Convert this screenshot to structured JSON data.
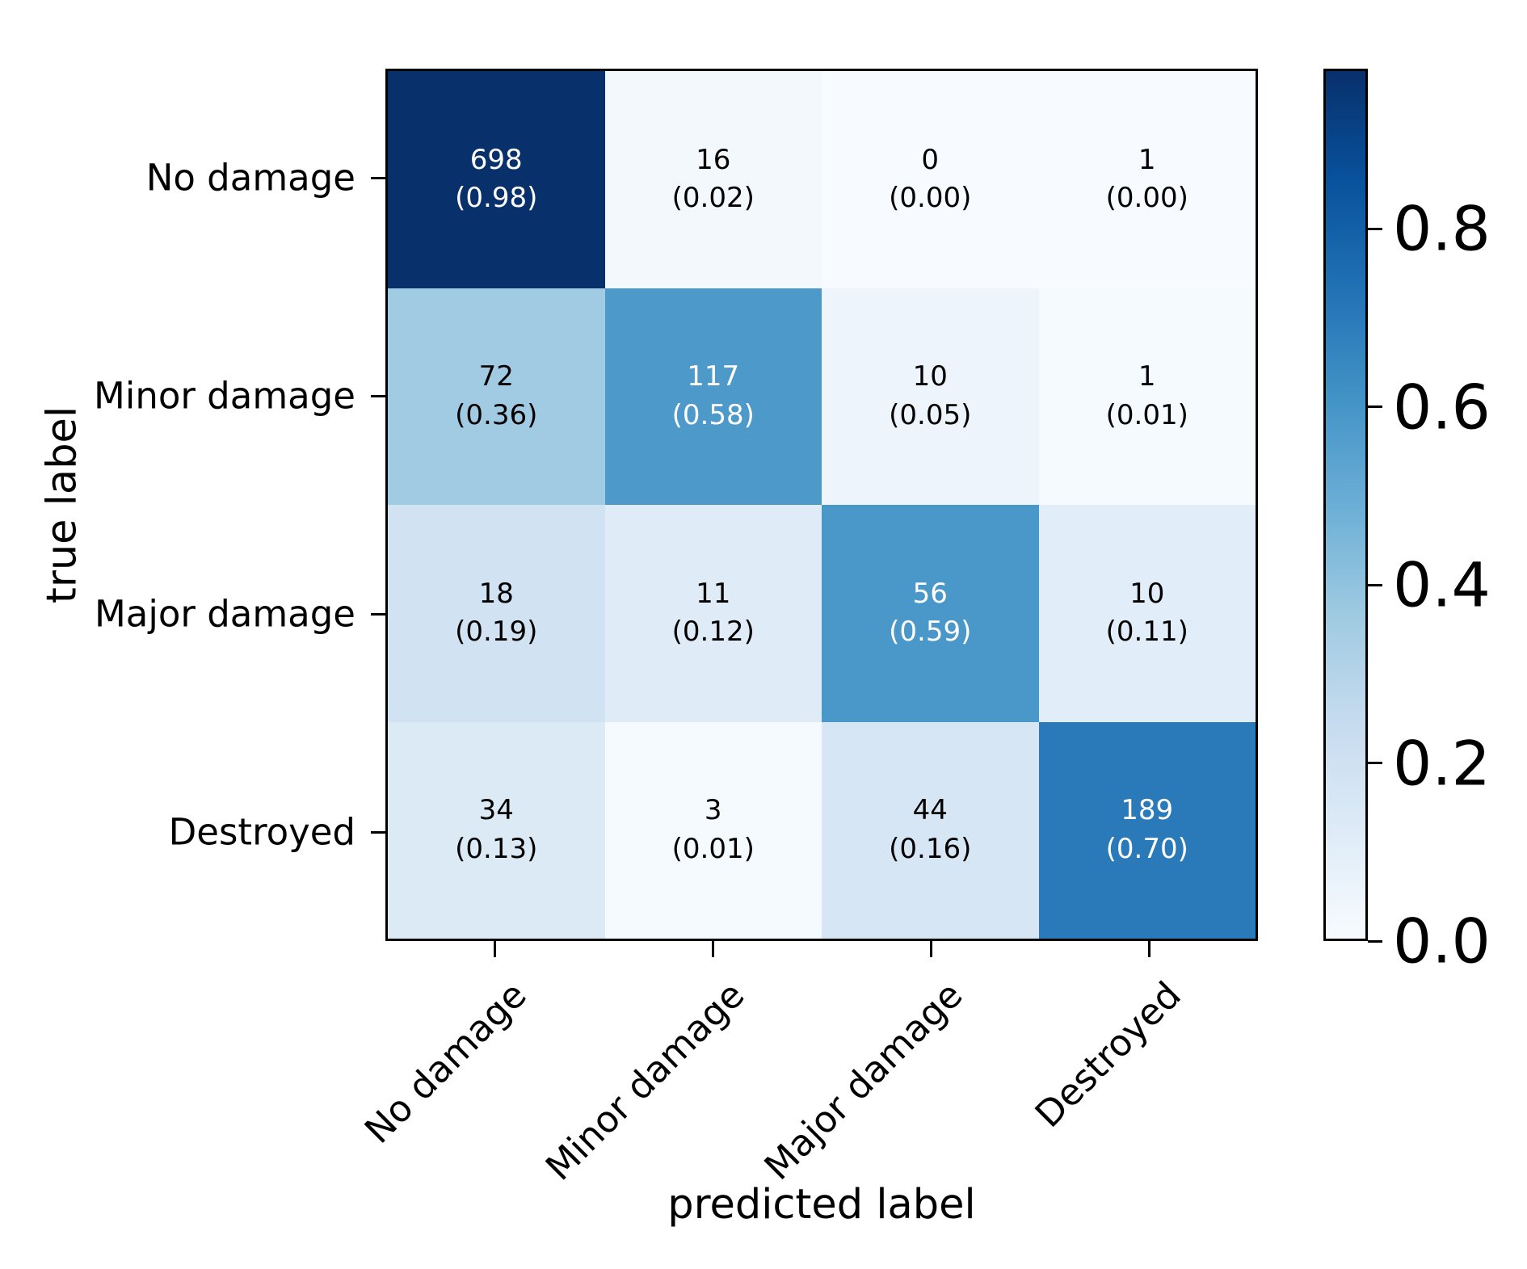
{
  "chart_data": {
    "type": "heatmap",
    "title": "",
    "xlabel": "predicted label",
    "ylabel": "true label",
    "x_categories": [
      "No damage",
      "Minor damage",
      "Major damage",
      "Destroyed"
    ],
    "y_categories": [
      "No damage",
      "Minor damage",
      "Major damage",
      "Destroyed"
    ],
    "series": [
      {
        "name": "No damage",
        "counts": [
          698,
          16,
          0,
          1
        ],
        "fractions": [
          0.98,
          0.02,
          0.0,
          0.0
        ]
      },
      {
        "name": "Minor damage",
        "counts": [
          72,
          117,
          10,
          1
        ],
        "fractions": [
          0.36,
          0.58,
          0.05,
          0.01
        ]
      },
      {
        "name": "Major damage",
        "counts": [
          18,
          11,
          56,
          10
        ],
        "fractions": [
          0.19,
          0.12,
          0.59,
          0.11
        ]
      },
      {
        "name": "Destroyed",
        "counts": [
          34,
          3,
          44,
          189
        ],
        "fractions": [
          0.13,
          0.01,
          0.16,
          0.7
        ]
      }
    ],
    "count_labels": [
      [
        "698",
        "16",
        "0",
        "1"
      ],
      [
        "72",
        "117",
        "10",
        "1"
      ],
      [
        "18",
        "11",
        "56",
        "10"
      ],
      [
        "34",
        "3",
        "44",
        "189"
      ]
    ],
    "fraction_labels": [
      [
        "(0.98)",
        "(0.02)",
        "(0.00)",
        "(0.00)"
      ],
      [
        "(0.36)",
        "(0.58)",
        "(0.05)",
        "(0.01)"
      ],
      [
        "(0.19)",
        "(0.12)",
        "(0.59)",
        "(0.11)"
      ],
      [
        "(0.13)",
        "(0.01)",
        "(0.16)",
        "(0.70)"
      ]
    ],
    "cell_colors": [
      [
        "#08306b",
        "#f3f8fd",
        "#f7fbff",
        "#f7fbff"
      ],
      [
        "#a1cbe2",
        "#4d99ca",
        "#edf4fb",
        "#f5fafe"
      ],
      [
        "#d1e2f3",
        "#dfecf7",
        "#4a97c9",
        "#e1edf8"
      ],
      [
        "#dceaf6",
        "#f5fafe",
        "#d7e6f4",
        "#2a7aba"
      ]
    ],
    "cell_text_colors": [
      [
        "#ffffff",
        "#000000",
        "#000000",
        "#000000"
      ],
      [
        "#000000",
        "#ffffff",
        "#000000",
        "#000000"
      ],
      [
        "#000000",
        "#000000",
        "#ffffff",
        "#000000"
      ],
      [
        "#000000",
        "#000000",
        "#000000",
        "#ffffff"
      ]
    ],
    "grid": false,
    "legend": "none",
    "colorbar": {
      "position": "right",
      "colormap": "Blues",
      "vmin": 0.0,
      "vmax": 0.98,
      "tick_labels": [
        "0.8",
        "0.6",
        "0.4",
        "0.2",
        "0.0"
      ],
      "tick_values": [
        0.8,
        0.6,
        0.4,
        0.2,
        0.0
      ],
      "gradient_stops": [
        "#f7fbff",
        "#deebf7",
        "#c6dbef",
        "#9ecae1",
        "#6baed6",
        "#4292c6",
        "#2171b5",
        "#08519c",
        "#08306b"
      ]
    }
  }
}
